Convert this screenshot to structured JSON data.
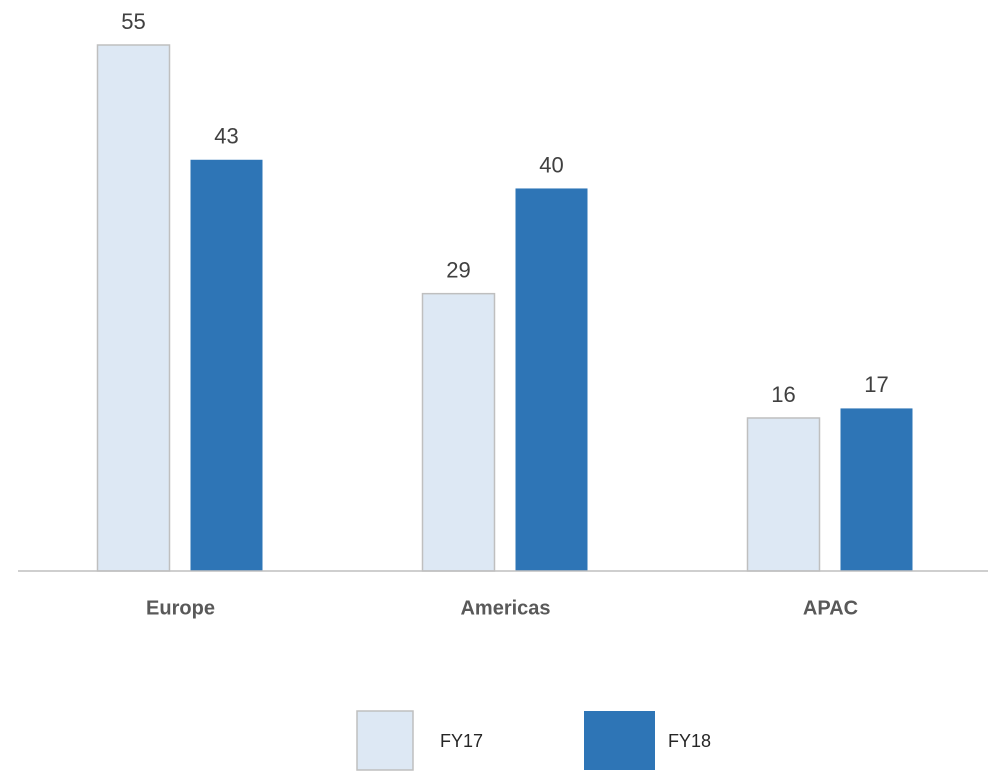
{
  "chart_data": {
    "type": "bar",
    "categories": [
      "Europe",
      "Americas",
      "APAC"
    ],
    "series": [
      {
        "name": "FY17",
        "color": "#dde8f4",
        "values": [
          55,
          29,
          16
        ]
      },
      {
        "name": "FY18",
        "color": "#2e75b6",
        "values": [
          43,
          40,
          17
        ]
      }
    ],
    "ylim": [
      0,
      55
    ]
  }
}
